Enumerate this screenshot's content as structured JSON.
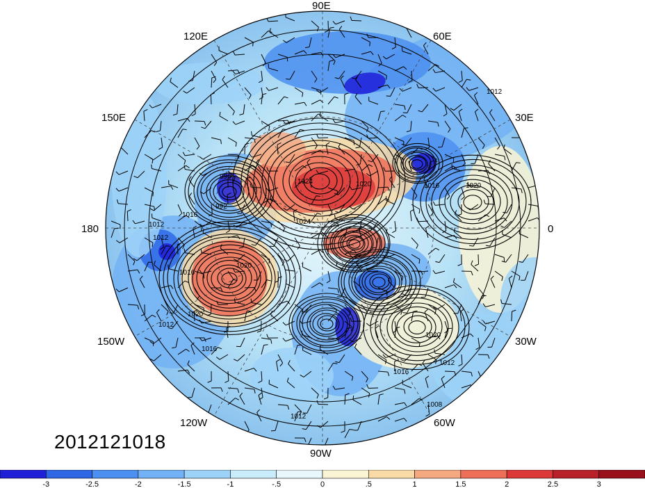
{
  "map": {
    "longitude_labels": {
      "top": "90E",
      "top_left": "120E",
      "top_right": "60E",
      "upper_left": "150E",
      "upper_right": "30E",
      "left": "180",
      "right": "0",
      "lower_left": "150W",
      "lower_right": "30W",
      "bottom_left": "120W",
      "bottom_right": "60W",
      "bottom": "90W"
    },
    "contour_labels": [
      "996",
      "992",
      "1016",
      "1012",
      "1012",
      "1016",
      "1020",
      "1024",
      "1020",
      "1024",
      "1020",
      "1016",
      "1012",
      "1012",
      "1008",
      "1012",
      "1016",
      "1020",
      "1012",
      "1016",
      "1020"
    ],
    "timestamp": "2012121018"
  },
  "colorbar": {
    "tick_labels": [
      "-3",
      "-2.5",
      "-2",
      "-1.5",
      "-1",
      "-.5",
      "0",
      ".5",
      "1",
      "1.5",
      "2",
      "2.5",
      "3"
    ],
    "colors": [
      "#1f1fd8",
      "#2e67e6",
      "#4b8ff0",
      "#72b1f5",
      "#9dd2f8",
      "#c9ecfa",
      "#e8f7fc",
      "#fcf5d5",
      "#f9dba7",
      "#f4a981",
      "#ee6f57",
      "#dd3838",
      "#b8202a",
      "#9a0f1c"
    ]
  }
}
